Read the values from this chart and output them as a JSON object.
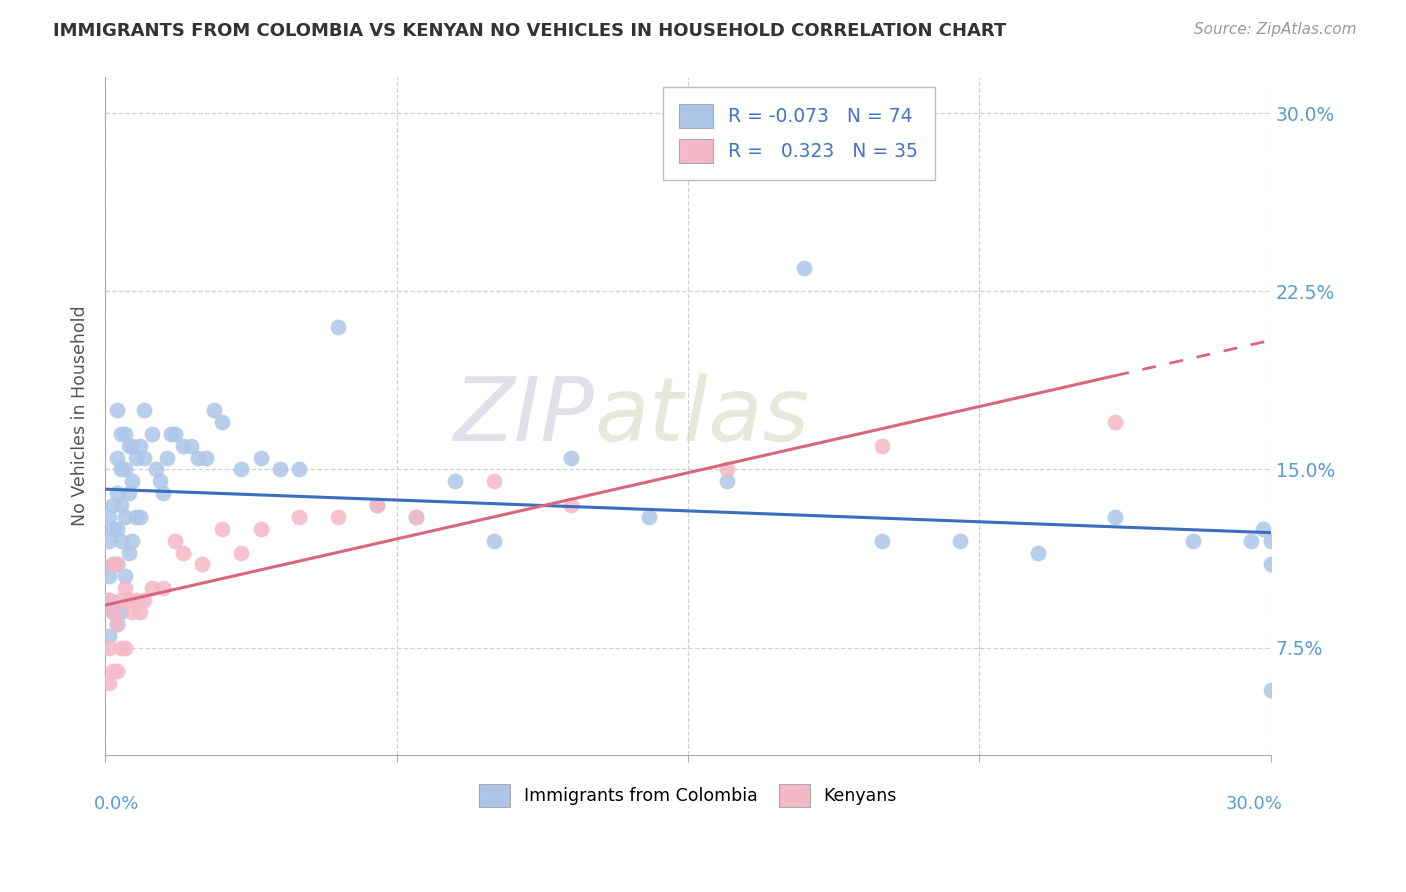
{
  "title": "IMMIGRANTS FROM COLOMBIA VS KENYAN NO VEHICLES IN HOUSEHOLD CORRELATION CHART",
  "source": "Source: ZipAtlas.com",
  "ylabel": "No Vehicles in Household",
  "blue_color": "#adc6e8",
  "pink_color": "#f5b8c8",
  "blue_line_color": "#3c6ebf",
  "pink_line_color": "#d9667a",
  "watermark_zip": "ZIP",
  "watermark_atlas": "atlas",
  "xmin": 0.0,
  "xmax": 0.3,
  "ymin": 0.03,
  "ymax": 0.315,
  "colombia_x": [
    0.001,
    0.001,
    0.001,
    0.001,
    0.001,
    0.002,
    0.002,
    0.002,
    0.002,
    0.003,
    0.003,
    0.003,
    0.003,
    0.003,
    0.003,
    0.004,
    0.004,
    0.004,
    0.004,
    0.004,
    0.005,
    0.005,
    0.005,
    0.005,
    0.006,
    0.006,
    0.006,
    0.007,
    0.007,
    0.007,
    0.008,
    0.008,
    0.009,
    0.009,
    0.01,
    0.01,
    0.012,
    0.013,
    0.014,
    0.015,
    0.016,
    0.017,
    0.018,
    0.02,
    0.022,
    0.024,
    0.026,
    0.028,
    0.03,
    0.035,
    0.04,
    0.045,
    0.05,
    0.06,
    0.07,
    0.08,
    0.09,
    0.1,
    0.12,
    0.14,
    0.16,
    0.18,
    0.2,
    0.22,
    0.24,
    0.26,
    0.28,
    0.295,
    0.298,
    0.3,
    0.3,
    0.3
  ],
  "colombia_y": [
    0.13,
    0.12,
    0.105,
    0.095,
    0.08,
    0.135,
    0.125,
    0.11,
    0.09,
    0.175,
    0.155,
    0.14,
    0.125,
    0.11,
    0.085,
    0.165,
    0.15,
    0.135,
    0.12,
    0.09,
    0.165,
    0.15,
    0.13,
    0.105,
    0.16,
    0.14,
    0.115,
    0.16,
    0.145,
    0.12,
    0.155,
    0.13,
    0.16,
    0.13,
    0.175,
    0.155,
    0.165,
    0.15,
    0.145,
    0.14,
    0.155,
    0.165,
    0.165,
    0.16,
    0.16,
    0.155,
    0.155,
    0.175,
    0.17,
    0.15,
    0.155,
    0.15,
    0.15,
    0.21,
    0.135,
    0.13,
    0.145,
    0.12,
    0.155,
    0.13,
    0.145,
    0.235,
    0.12,
    0.12,
    0.115,
    0.13,
    0.12,
    0.12,
    0.125,
    0.12,
    0.11,
    0.057
  ],
  "kenya_x": [
    0.001,
    0.001,
    0.001,
    0.002,
    0.002,
    0.002,
    0.003,
    0.003,
    0.003,
    0.004,
    0.004,
    0.005,
    0.005,
    0.006,
    0.007,
    0.008,
    0.009,
    0.01,
    0.012,
    0.015,
    0.018,
    0.02,
    0.025,
    0.03,
    0.035,
    0.04,
    0.05,
    0.06,
    0.07,
    0.08,
    0.1,
    0.12,
    0.16,
    0.2,
    0.26
  ],
  "kenya_y": [
    0.095,
    0.075,
    0.06,
    0.11,
    0.09,
    0.065,
    0.11,
    0.085,
    0.065,
    0.095,
    0.075,
    0.1,
    0.075,
    0.095,
    0.09,
    0.095,
    0.09,
    0.095,
    0.1,
    0.1,
    0.12,
    0.115,
    0.11,
    0.125,
    0.115,
    0.125,
    0.13,
    0.13,
    0.135,
    0.13,
    0.145,
    0.135,
    0.15,
    0.16,
    0.17
  ],
  "ytick_vals": [
    0.075,
    0.15,
    0.225,
    0.3
  ],
  "ytick_labels": [
    "7.5%",
    "15.0%",
    "22.5%",
    "30.0%"
  ]
}
